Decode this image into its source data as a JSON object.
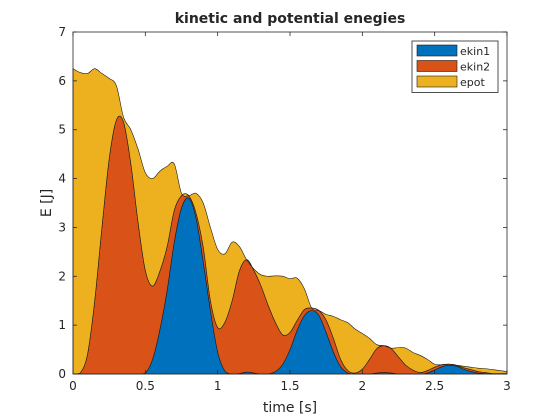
{
  "chart_data": {
    "type": "area",
    "stacked": true,
    "title": "kinetic and potential enegies",
    "xlabel": "time [s]",
    "ylabel": "E [J]",
    "xlim": [
      0,
      3
    ],
    "ylim": [
      0,
      7
    ],
    "xticks": [
      "0",
      "0.5",
      "1",
      "1.5",
      "2",
      "2.5",
      "3"
    ],
    "yticks": [
      "0",
      "1",
      "2",
      "3",
      "4",
      "5",
      "6",
      "7"
    ],
    "grid": false,
    "legend_position": "top-right",
    "x": [
      0,
      0.05,
      0.1,
      0.15,
      0.2,
      0.25,
      0.3,
      0.35,
      0.4,
      0.45,
      0.5,
      0.55,
      0.6,
      0.65,
      0.7,
      0.75,
      0.8,
      0.85,
      0.9,
      0.95,
      1.0,
      1.05,
      1.1,
      1.15,
      1.2,
      1.25,
      1.3,
      1.35,
      1.4,
      1.45,
      1.5,
      1.55,
      1.6,
      1.65,
      1.7,
      1.75,
      1.8,
      1.85,
      1.9,
      1.95,
      2.0,
      2.05,
      2.1,
      2.15,
      2.2,
      2.25,
      2.3,
      2.35,
      2.4,
      2.45,
      2.5,
      2.55,
      2.6,
      2.65,
      2.7,
      2.75,
      2.8,
      2.85,
      2.9,
      2.95,
      3.0
    ],
    "series": [
      {
        "name": "ekin1",
        "color": "#0072BD",
        "values": [
          0,
          0,
          0,
          0,
          0,
          0,
          0,
          0,
          0,
          0,
          0.02,
          0.3,
          0.9,
          1.7,
          2.7,
          3.4,
          3.6,
          3.2,
          2.3,
          1.3,
          0.45,
          0.06,
          0,
          0.01,
          0.04,
          0.02,
          0,
          0,
          0.05,
          0.2,
          0.5,
          0.9,
          1.2,
          1.3,
          1.2,
          0.85,
          0.45,
          0.15,
          0.02,
          0,
          0,
          0,
          0.02,
          0.03,
          0.02,
          0,
          0,
          0,
          0,
          0.02,
          0.08,
          0.15,
          0.18,
          0.16,
          0.1,
          0.05,
          0.02,
          0.01,
          0,
          0,
          0
        ]
      },
      {
        "name": "ekin2",
        "color": "#D95319",
        "values": [
          0,
          0.02,
          0.4,
          1.5,
          3.0,
          4.4,
          5.2,
          5.15,
          4.3,
          3.1,
          2.1,
          1.5,
          1.2,
          0.9,
          0.65,
          0.25,
          0.05,
          0.1,
          0.3,
          0.2,
          0.5,
          1.0,
          1.5,
          2.1,
          2.3,
          2.1,
          1.8,
          1.4,
          1.0,
          0.6,
          0.35,
          0.2,
          0.12,
          0.05,
          0.1,
          0.25,
          0.28,
          0.15,
          0.05,
          0.02,
          0.1,
          0.3,
          0.5,
          0.55,
          0.5,
          0.35,
          0.18,
          0.08,
          0.03,
          0.05,
          0.06,
          0.04,
          0.02,
          0.02,
          0.03,
          0.04,
          0.03,
          0.02,
          0.01,
          0.01,
          0.01
        ]
      },
      {
        "name": "epot",
        "color": "#EDB120",
        "values": [
          6.25,
          6.15,
          5.75,
          4.75,
          3.15,
          1.65,
          0.7,
          0.1,
          0.7,
          1.5,
          2.0,
          2.2,
          2.05,
          1.65,
          0.95,
          0.05,
          0.0,
          0.4,
          0.9,
          1.5,
          1.6,
          1.4,
          1.2,
          0.5,
          0.0,
          0.03,
          0.23,
          0.6,
          0.96,
          1.2,
          1.1,
          0.86,
          0.42,
          0.0,
          0.0,
          0.12,
          0.45,
          0.81,
          0.98,
          0.9,
          0.73,
          0.43,
          0.08,
          0.0,
          0.01,
          0.19,
          0.35,
          0.36,
          0.35,
          0.23,
          0.06,
          0.0,
          0.0,
          0.0,
          0.03,
          0.05,
          0.07,
          0.08,
          0.08,
          0.06,
          0.04
        ]
      }
    ]
  }
}
